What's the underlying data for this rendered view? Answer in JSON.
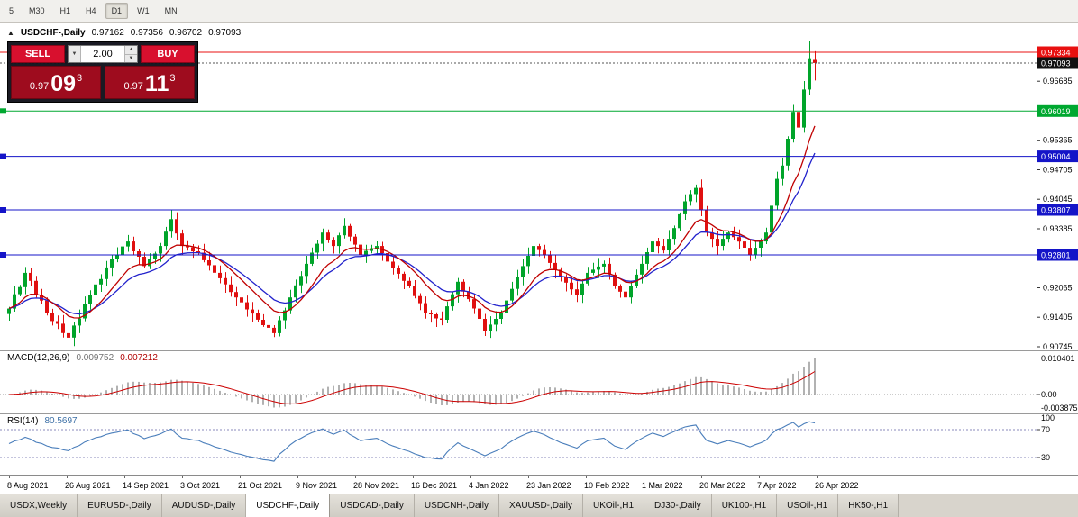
{
  "icons": {
    "collapse_arrow": "▲",
    "dropdown_arrow": "▼",
    "spinner_up": "▲",
    "spinner_down": "▼"
  },
  "toolbar": {
    "timeframes": [
      "5",
      "M30",
      "H1",
      "H4",
      "D1",
      "W1",
      "MN"
    ],
    "active": "D1"
  },
  "chart_header": {
    "symbol": "USDCHF-,Daily",
    "open": "0.97162",
    "high": "0.97356",
    "low": "0.96702",
    "close": "0.97093"
  },
  "trade_panel": {
    "sell_label": "SELL",
    "buy_label": "BUY",
    "volume": "2.00",
    "sell_price": {
      "prefix": "0.97",
      "big": "09",
      "sup": "3"
    },
    "buy_price": {
      "prefix": "0.97",
      "big": "11",
      "sup": "3"
    }
  },
  "colors": {
    "candle_up": "#00a42a",
    "candle_down": "#e01010",
    "ma_fast": "#c00000",
    "ma_slow": "#2222cc",
    "macd_bar": "#b2b2b2",
    "macd_signal": "#cc0000",
    "rsi_line": "#4a7ebb",
    "rsi_level": "#8888bb",
    "axis_line": "#8a8a8a"
  },
  "chart_data": {
    "type": "candlestick+indicators",
    "symbol": "USDCHF-",
    "period": "Daily",
    "closes": [
      0.916,
      0.9192,
      0.9208,
      0.924,
      0.9222,
      0.919,
      0.9178,
      0.915,
      0.9132,
      0.9126,
      0.9105,
      0.9095,
      0.9122,
      0.9138,
      0.917,
      0.919,
      0.9214,
      0.9226,
      0.9252,
      0.927,
      0.9281,
      0.9299,
      0.931,
      0.9288,
      0.9276,
      0.9255,
      0.9272,
      0.9283,
      0.93,
      0.9332,
      0.936,
      0.9328,
      0.93,
      0.9297,
      0.9288,
      0.9285,
      0.9268,
      0.9257,
      0.924,
      0.9228,
      0.9214,
      0.9197,
      0.9185,
      0.9174,
      0.9158,
      0.9149,
      0.9135,
      0.9123,
      0.9117,
      0.9105,
      0.9134,
      0.9156,
      0.9185,
      0.9212,
      0.9233,
      0.926,
      0.9285,
      0.9305,
      0.933,
      0.9313,
      0.93,
      0.9324,
      0.9345,
      0.9321,
      0.9303,
      0.928,
      0.9289,
      0.9295,
      0.93,
      0.9284,
      0.9265,
      0.925,
      0.9238,
      0.9222,
      0.921,
      0.9188,
      0.9172,
      0.915,
      0.9147,
      0.9138,
      0.9135,
      0.9165,
      0.9192,
      0.922,
      0.9198,
      0.9181,
      0.916,
      0.9137,
      0.911,
      0.9124,
      0.9137,
      0.915,
      0.9178,
      0.9204,
      0.923,
      0.9255,
      0.9278,
      0.93,
      0.9291,
      0.928,
      0.9262,
      0.9247,
      0.923,
      0.9218,
      0.9203,
      0.919,
      0.9216,
      0.924,
      0.9247,
      0.9254,
      0.926,
      0.9236,
      0.921,
      0.9198,
      0.9185,
      0.9211,
      0.9236,
      0.926,
      0.9286,
      0.931,
      0.93,
      0.929,
      0.9316,
      0.934,
      0.9371,
      0.94,
      0.9416,
      0.943,
      0.9381,
      0.933,
      0.9316,
      0.93,
      0.9316,
      0.933,
      0.932,
      0.931,
      0.9296,
      0.928,
      0.9296,
      0.931,
      0.933,
      0.939,
      0.945,
      0.948,
      0.954,
      0.96,
      0.9565,
      0.965,
      0.972,
      0.97093
    ],
    "candle_overrides": {
      "148": {
        "high": 0.9758
      },
      "149": {
        "open": 0.97162,
        "high": 0.97356,
        "low": 0.96702,
        "close": 0.97093
      }
    },
    "levels": [
      {
        "price": 0.97334,
        "color": "#e81010",
        "style": "solid",
        "edge_marker": false
      },
      {
        "price": 0.97093,
        "color": "#555555",
        "style": "dotted",
        "edge_marker": false
      },
      {
        "price": 0.96019,
        "color": "#00a830",
        "style": "solid",
        "edge_marker": true
      },
      {
        "price": 0.95004,
        "color": "#1414c8",
        "style": "solid",
        "edge_marker": true
      },
      {
        "price": 0.93807,
        "color": "#1414c8",
        "style": "solid",
        "edge_marker": true
      },
      {
        "price": 0.92801,
        "color": "#1414c8",
        "style": "solid",
        "edge_marker": true
      }
    ],
    "price_axis": {
      "plain": [
        {
          "label": "0.96685",
          "price": 0.96685
        },
        {
          "label": "0.95365",
          "price": 0.95365
        },
        {
          "label": "0.94705",
          "price": 0.94705
        },
        {
          "label": "0.94045",
          "price": 0.94045
        },
        {
          "label": "0.93385",
          "price": 0.93385
        },
        {
          "label": "0.92065",
          "price": 0.92065
        },
        {
          "label": "0.91405",
          "price": 0.91405
        },
        {
          "label": "0.90745",
          "price": 0.90745
        }
      ],
      "tags": [
        {
          "label": "0.97334",
          "price": 0.97334,
          "bg": "#e81010"
        },
        {
          "label": "0.97093",
          "price": 0.97093,
          "bg": "#111111"
        },
        {
          "label": "0.96019",
          "price": 0.96019,
          "bg": "#00a830"
        },
        {
          "label": "0.95004",
          "price": 0.95004,
          "bg": "#1414c8"
        },
        {
          "label": "0.93807",
          "price": 0.93807,
          "bg": "#1414c8"
        },
        {
          "label": "0.92801",
          "price": 0.92801,
          "bg": "#1414c8"
        }
      ]
    },
    "macd": {
      "label": "MACD(12,26,9)",
      "main_value": "0.009752",
      "signal_value": "0.007212",
      "axis_max": "0.010401",
      "axis_zero": "0.00",
      "axis_min": "-0.003875"
    },
    "rsi": {
      "label": "RSI(14)",
      "value": "80.5697",
      "axis_labels": [
        "100",
        "70",
        "30"
      ],
      "levels": [
        70,
        30
      ]
    },
    "date_labels": [
      "8 Aug 2021",
      "26 Aug 2021",
      "14 Sep 2021",
      "3 Oct 2021",
      "21 Oct 2021",
      "9 Nov 2021",
      "28 Nov 2021",
      "16 Dec 2021",
      "4 Jan 2022",
      "23 Jan 2022",
      "10 Feb 2022",
      "1 Mar 2022",
      "20 Mar 2022",
      "7 Apr 2022",
      "26 Apr 2022"
    ]
  },
  "tabs": {
    "items": [
      "USDX,Weekly",
      "EURUSD-,Daily",
      "AUDUSD-,Daily",
      "USDCHF-,Daily",
      "USDCAD-,Daily",
      "USDCNH-,Daily",
      "XAUUSD-,Daily",
      "UKOil-,H1",
      "DJ30-,Daily",
      "UK100-,H1",
      "USOil-,H1",
      "HK50-,H1"
    ],
    "active_index": 3
  }
}
